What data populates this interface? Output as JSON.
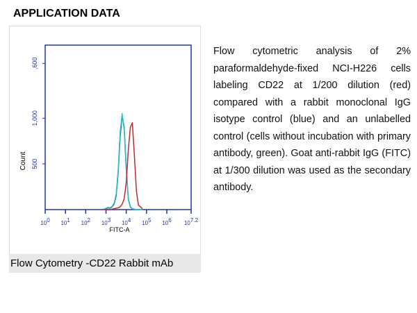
{
  "header": {
    "title": "APPLICATION DATA"
  },
  "description": "Flow cytometric analysis of 2% paraformaldehyde-fixed NCI-H226 cells labeling CD22 at 1/200 dilution (red) compared with a rabbit monoclonal IgG isotype control (blue) and an unlabelled control (cells without incubation with primary antibody, green). Goat anti-rabbit IgG (FITC) at 1/300 dilution was used as the secondary antibody.",
  "caption": "Flow Cytometry -CD22 Rabbit mAb",
  "chart_data": {
    "type": "line",
    "xlabel": "FITC-A",
    "ylabel": "Count",
    "xlog": true,
    "xlim": [
      1,
      15848932
    ],
    "xticks": [
      {
        "value": 1,
        "label": "10",
        "exponent": "0"
      },
      {
        "value": 10,
        "label": "10",
        "exponent": "1"
      },
      {
        "value": 100,
        "label": "10",
        "exponent": "2"
      },
      {
        "value": 1000,
        "label": "10",
        "exponent": "3"
      },
      {
        "value": 10000,
        "label": "10",
        "exponent": "4"
      },
      {
        "value": 100000,
        "label": "10",
        "exponent": "5"
      },
      {
        "value": 1000000,
        "label": "10",
        "exponent": "6"
      },
      {
        "value": 15848932,
        "label": "10",
        "exponent": "7.2"
      }
    ],
    "ylim": [
      0,
      1800
    ],
    "yticks": [
      500,
      {
        "value": 1000,
        "label": "1,000"
      },
      {
        "value": 1600,
        "label": ",600"
      }
    ],
    "x": [
      631,
      794,
      1000,
      1259,
      1585,
      1995,
      2512,
      3162,
      3981,
      5012,
      6310,
      7943,
      10000,
      12589,
      15849,
      19953,
      25119,
      31623,
      39811,
      50119,
      63096
    ],
    "axis_color": "#2233aa",
    "series": [
      {
        "color": "#2a3cbf",
        "values": [
          0,
          5,
          10,
          20,
          15,
          30,
          60,
          150,
          400,
          800,
          1030,
          900,
          450,
          120,
          30,
          10,
          5,
          0,
          0,
          0,
          0
        ]
      },
      {
        "color": "#29c6c6",
        "values": [
          0,
          5,
          15,
          25,
          20,
          35,
          70,
          170,
          430,
          850,
          1050,
          870,
          420,
          110,
          25,
          10,
          5,
          0,
          0,
          0,
          0
        ]
      },
      {
        "color": "#c0282e",
        "values": [
          0,
          0,
          0,
          0,
          0,
          5,
          10,
          15,
          20,
          30,
          60,
          120,
          300,
          650,
          900,
          950,
          600,
          200,
          50,
          30,
          10
        ]
      }
    ]
  }
}
